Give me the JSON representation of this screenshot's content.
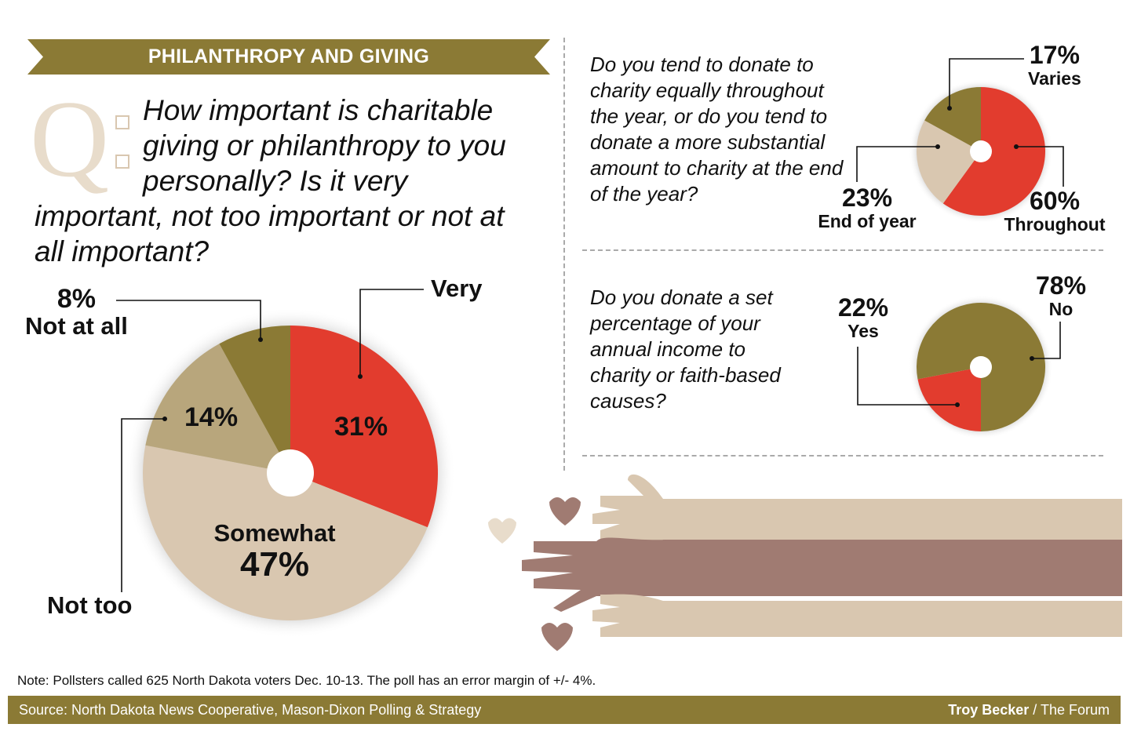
{
  "header": {
    "banner": "PHILANTHROPY AND GIVING"
  },
  "colors": {
    "olive": "#8b7a35",
    "red": "#e23c2e",
    "tan_light": "#d9c7b0",
    "tan_mid": "#b8a67c",
    "hand_dark": "#a07b72"
  },
  "main_question": {
    "q_mark": "Q",
    "text_line1": "How important is charitable",
    "text_line2": "giving or philanthropy to you",
    "text_line3": "personally? Is it very",
    "text_line4": "important, not too important or not at",
    "text_line5": "all important?"
  },
  "question2": "Do you tend to donate to charity equally throughout the year, or do you tend to donate a more substantial amount to charity at the end of the year?",
  "question3": "Do you donate a set percentage of your annual income to charity or faith-based causes?",
  "chart_data": [
    {
      "type": "pie",
      "start_angle_deg": 0,
      "categories": [
        "Very",
        "Somewhat",
        "Not too",
        "Not at all"
      ],
      "values": [
        31,
        47,
        14,
        8
      ],
      "labels": [
        "31%",
        "47%",
        "14%",
        "8%"
      ],
      "colors": [
        "#e23c2e",
        "#d9c7b0",
        "#b8a67c",
        "#8b7a35"
      ]
    },
    {
      "type": "pie",
      "start_angle_deg": 0,
      "categories": [
        "Throughout",
        "End of year",
        "Varies"
      ],
      "values": [
        60,
        23,
        17
      ],
      "labels": [
        "60%",
        "23%",
        "17%"
      ],
      "colors": [
        "#e23c2e",
        "#d9c7b0",
        "#8b7a35"
      ]
    },
    {
      "type": "pie",
      "start_angle_deg": 180,
      "categories": [
        "Yes",
        "No"
      ],
      "values": [
        22,
        78
      ],
      "labels": [
        "22%",
        "78%"
      ],
      "colors": [
        "#e23c2e",
        "#8b7a35"
      ]
    }
  ],
  "note": "Note: Pollsters called 625 North Dakota voters Dec. 10-13. The poll has an error margin of +/- 4%.",
  "footer": {
    "source": "Source: North Dakota News Cooperative, Mason-Dixon Polling & Strategy",
    "author": "Troy Becker",
    "outlet": " / The Forum"
  }
}
